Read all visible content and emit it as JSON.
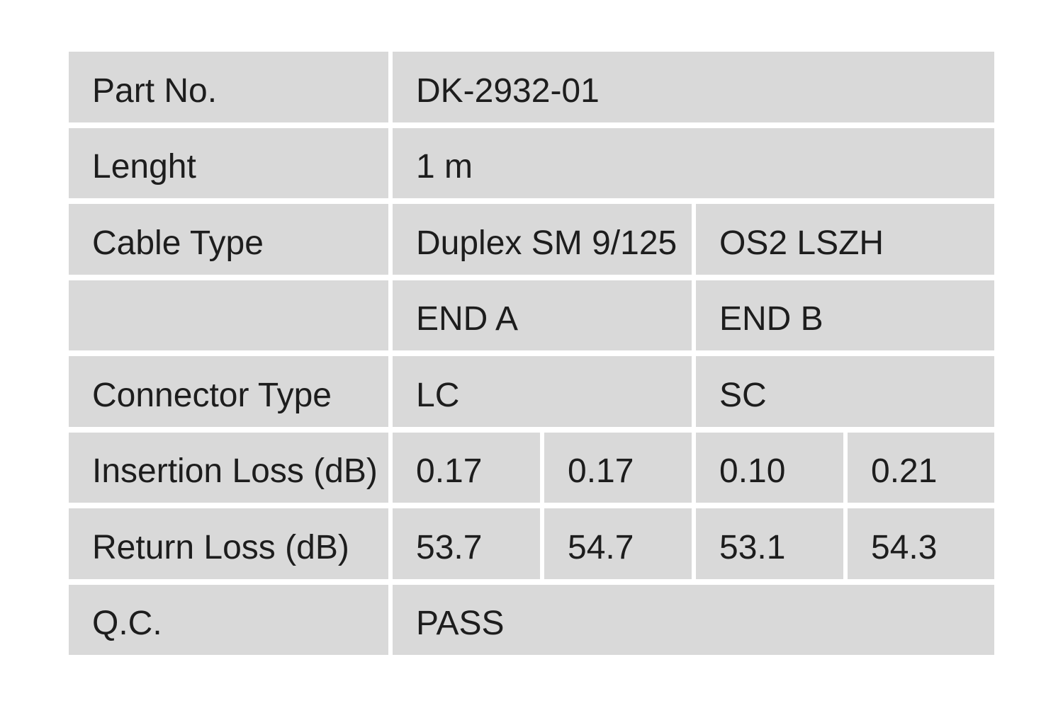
{
  "table": {
    "part_no": {
      "label": "Part No.",
      "value": "DK-2932-01"
    },
    "length": {
      "label": "Lenght",
      "value": "1 m"
    },
    "cable_type": {
      "label": "Cable Type",
      "values": [
        "Duplex SM 9/125",
        "OS2 LSZH"
      ]
    },
    "ends": {
      "label": "",
      "values": [
        "END A",
        "END B"
      ]
    },
    "connector_type": {
      "label": "Connector Type",
      "values": [
        "LC",
        "SC"
      ]
    },
    "insertion_loss": {
      "label": "Insertion Loss (dB)",
      "values": [
        "0.17",
        "0.17",
        "0.10",
        "0.21"
      ]
    },
    "return_loss": {
      "label": "Return Loss (dB)",
      "values": [
        "53.7",
        "54.7",
        "53.1",
        "54.3"
      ]
    },
    "qc": {
      "label": "Q.C.",
      "value": "PASS"
    }
  },
  "colors": {
    "background": "#ffffff",
    "cell_bg": "#d9d9d9",
    "text": "#1d1d1d"
  }
}
